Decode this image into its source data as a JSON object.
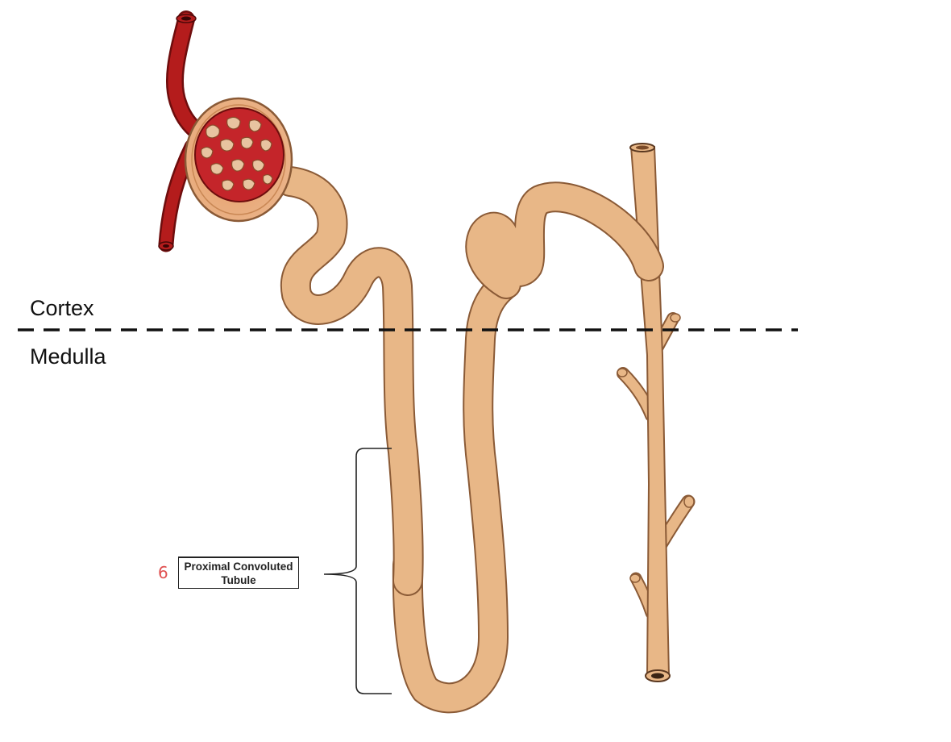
{
  "regions": {
    "upper_label": "Cortex",
    "lower_label": "Medulla"
  },
  "callout": {
    "number": "6",
    "label": "Proximal Convoluted\nTubule"
  },
  "colors": {
    "tubule": "#e8b787",
    "tubule_outline": "#8a5a36",
    "capsule": "#e8a577",
    "vessel": "#b41c1c",
    "vessel_dark": "#6e0d0d",
    "callout_number": "#e05050",
    "boundary": "#111111"
  }
}
